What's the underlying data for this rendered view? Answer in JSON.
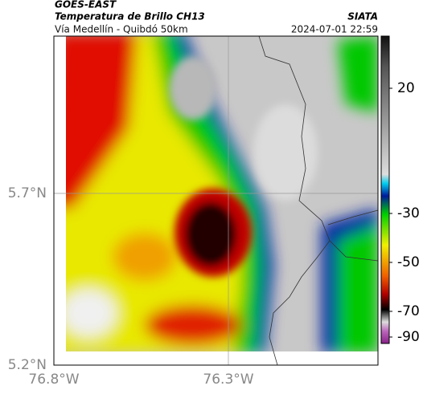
{
  "header": {
    "title": "GOES-EAST",
    "subtitle": "Temperatura de Brillo CH13",
    "location": "Vía Medellín - Quibdó 50km",
    "source": "SIATA",
    "datetime": "2024-07-01 22:59"
  },
  "axes": {
    "lat_labels": [
      "5.7°N",
      "5.2°N"
    ],
    "lon_labels": [
      "76.8°W",
      "76.3°W"
    ]
  },
  "colorbar": {
    "ticks": [
      "20",
      "-30",
      "-50",
      "-70",
      "-90"
    ]
  }
}
